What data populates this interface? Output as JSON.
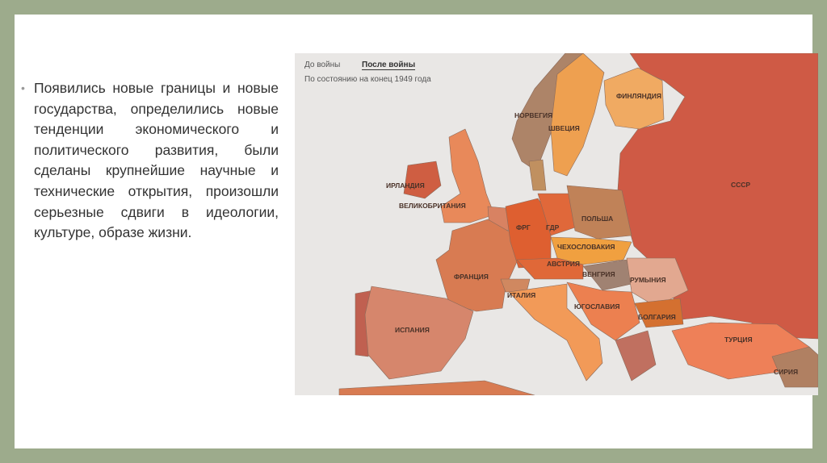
{
  "bullet": {
    "text": "Появились новые границы и новые государства, определились новые тенденции экономического и политического развития, были сделаны крупнейшие научные и технические открытия, произошли серьезные сдвиги в идеологии, культуре, образе жизни."
  },
  "map": {
    "tabs": [
      {
        "label": "До войны",
        "active": false
      },
      {
        "label": "После войны",
        "active": true
      }
    ],
    "subtitle": "По состоянию на конец 1949 года",
    "countries": {
      "ussr": {
        "label": "СССР",
        "color": "#cf5a45"
      },
      "finland": {
        "label": "ФИНЛЯНДИЯ",
        "color": "#f0aa62"
      },
      "norway": {
        "label": "НОРВЕГИЯ",
        "color": "#ad8468"
      },
      "sweden": {
        "label": "ШВЕЦИЯ",
        "color": "#eea050"
      },
      "ireland": {
        "label": "ИРЛАНДИЯ",
        "color": "#cf5e42"
      },
      "uk": {
        "label": "ВЕЛИКОБРИТАНИЯ",
        "color": "#e8895a"
      },
      "frg": {
        "label": "ФРГ",
        "color": "#de5f30"
      },
      "gdr": {
        "label": "ГДР",
        "color": "#e0683a"
      },
      "poland": {
        "label": "ПОЛЬША",
        "color": "#c08258"
      },
      "czechoslovakia": {
        "label": "ЧЕХОСЛОВАКИЯ",
        "color": "#f0a040"
      },
      "austria": {
        "label": "АВСТРИЯ",
        "color": "#e06838"
      },
      "france": {
        "label": "ФРАНЦИЯ",
        "color": "#d87b52"
      },
      "hungary": {
        "label": "ВЕНГРИЯ",
        "color": "#a08272"
      },
      "romania": {
        "label": "РУМЫНИЯ",
        "color": "#e2a890"
      },
      "italy": {
        "label": "ИТАЛИЯ",
        "color": "#f29a58"
      },
      "yugoslavia": {
        "label": "ЮГОСЛАВИЯ",
        "color": "#ec8050"
      },
      "bulgaria": {
        "label": "БОЛГАРИЯ",
        "color": "#d47030"
      },
      "spain": {
        "label": "ИСПАНИЯ",
        "color": "#d6866c"
      },
      "turkey": {
        "label": "ТУРЦИЯ",
        "color": "#ee8058"
      },
      "syria": {
        "label": "СИРИЯ",
        "color": "#b08062"
      }
    }
  }
}
